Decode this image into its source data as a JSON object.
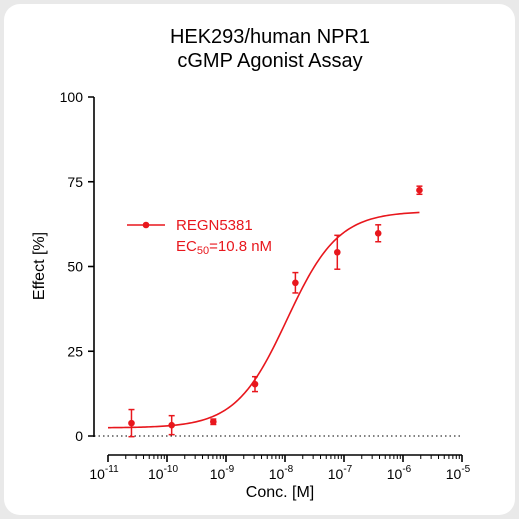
{
  "chart_data": {
    "type": "scatter",
    "title_lines": [
      "HEK293/human NPR1",
      "cGMP Agonist Assay"
    ],
    "xlabel": "Conc. [M]",
    "ylabel": "Effect  [%]",
    "x_scale": "log",
    "xlim": [
      1e-11,
      1e-05
    ],
    "ylim": [
      0,
      100
    ],
    "x_ticks": [
      {
        "base": "10",
        "exp": "-11",
        "value": 1e-11
      },
      {
        "base": "10",
        "exp": "-10",
        "value": 1e-10
      },
      {
        "base": "10",
        "exp": "-9",
        "value": 1e-09
      },
      {
        "base": "10",
        "exp": "-8",
        "value": 1e-08
      },
      {
        "base": "10",
        "exp": "-7",
        "value": 1e-07
      },
      {
        "base": "10",
        "exp": "-6",
        "value": 1e-06
      },
      {
        "base": "10",
        "exp": "-5",
        "value": 1e-05
      }
    ],
    "y_ticks": [
      {
        "label": "0",
        "value": 0
      },
      {
        "label": "25",
        "value": 25
      },
      {
        "label": "50",
        "value": 50
      },
      {
        "label": "75",
        "value": 75
      },
      {
        "label": "100",
        "value": 100
      }
    ],
    "zero_line": "dotted",
    "grid": false,
    "legend_position": "upper-left",
    "series": [
      {
        "name": "REGN5381",
        "ec50_label": {
          "prefix": "EC",
          "sub": "50",
          "suffix": "=10.8 nM"
        },
        "color": "#e8171d",
        "points": [
          {
            "x": 2.5e-11,
            "y": 3.8,
            "err": 4.0
          },
          {
            "x": 1.2e-10,
            "y": 3.2,
            "err": 2.8
          },
          {
            "x": 6.1e-10,
            "y": 4.2,
            "err": 0.8
          },
          {
            "x": 3.1e-09,
            "y": 15.3,
            "err": 2.2
          },
          {
            "x": 1.5e-08,
            "y": 45.2,
            "err": 3.0
          },
          {
            "x": 7.7e-08,
            "y": 54.2,
            "err": 5.0
          },
          {
            "x": 3.8e-07,
            "y": 59.8,
            "err": 2.5
          },
          {
            "x": 1.9e-06,
            "y": 72.5,
            "err": 1.2
          }
        ],
        "fit": {
          "bottom": 2.4,
          "top": 66.3,
          "ec50": 1.08e-08,
          "hill": 1.0,
          "x_min": 1e-11,
          "x_max": 1.9e-06
        }
      }
    ]
  }
}
